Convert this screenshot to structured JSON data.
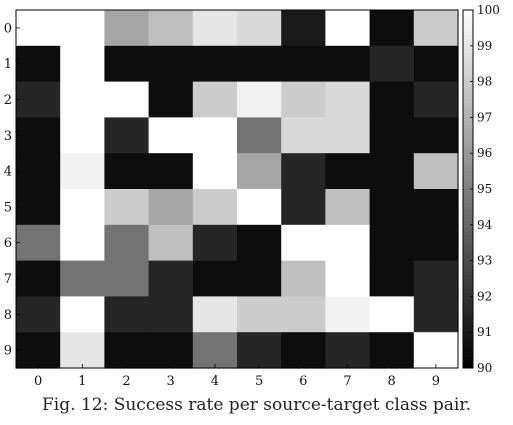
{
  "caption": "Fig. 12: Success rate per source-target class pair.",
  "chart_data": {
    "type": "heatmap",
    "title": "",
    "xlabel": "",
    "ylabel": "",
    "x_categories": [
      "0",
      "1",
      "2",
      "3",
      "4",
      "5",
      "6",
      "7",
      "8",
      "9"
    ],
    "y_categories": [
      "0",
      "1",
      "2",
      "3",
      "4",
      "5",
      "6",
      "7",
      "8",
      "9"
    ],
    "values": [
      [
        100,
        100,
        96.5,
        97.5,
        99,
        98.5,
        91,
        100,
        90.5,
        98
      ],
      [
        90.5,
        100,
        90.5,
        90.5,
        90.5,
        90.5,
        90.5,
        90.5,
        91.5,
        90.5
      ],
      [
        91.5,
        100,
        100,
        90.5,
        98,
        99.5,
        98,
        98.5,
        90.5,
        91.5
      ],
      [
        90.5,
        100,
        91.5,
        100,
        100,
        94.5,
        98.5,
        98.5,
        90.5,
        90.5
      ],
      [
        90.5,
        99.5,
        90.5,
        90.5,
        100,
        96.5,
        91.5,
        90.5,
        90.5,
        97.5
      ],
      [
        90.5,
        100,
        98,
        96.5,
        98,
        100,
        91.5,
        97.5,
        90.5,
        90.5
      ],
      [
        94.5,
        100,
        94.5,
        97.5,
        91.5,
        90.5,
        100,
        100,
        90.5,
        90.5
      ],
      [
        90.5,
        94.5,
        94.5,
        91.5,
        90.5,
        90.5,
        97.5,
        100,
        90.5,
        91.5
      ],
      [
        91.5,
        100,
        91.5,
        91.5,
        99,
        98,
        98,
        99.5,
        100,
        91.5
      ],
      [
        90.5,
        99,
        90.5,
        90.5,
        94.5,
        91.5,
        90.5,
        91.5,
        90.5,
        100
      ]
    ],
    "colorbar": {
      "range": [
        90,
        100
      ],
      "ticks": [
        90,
        91,
        92,
        93,
        94,
        95,
        96,
        97,
        98,
        99,
        100
      ]
    },
    "colormap": "gray (black = 90, white = 100)"
  }
}
